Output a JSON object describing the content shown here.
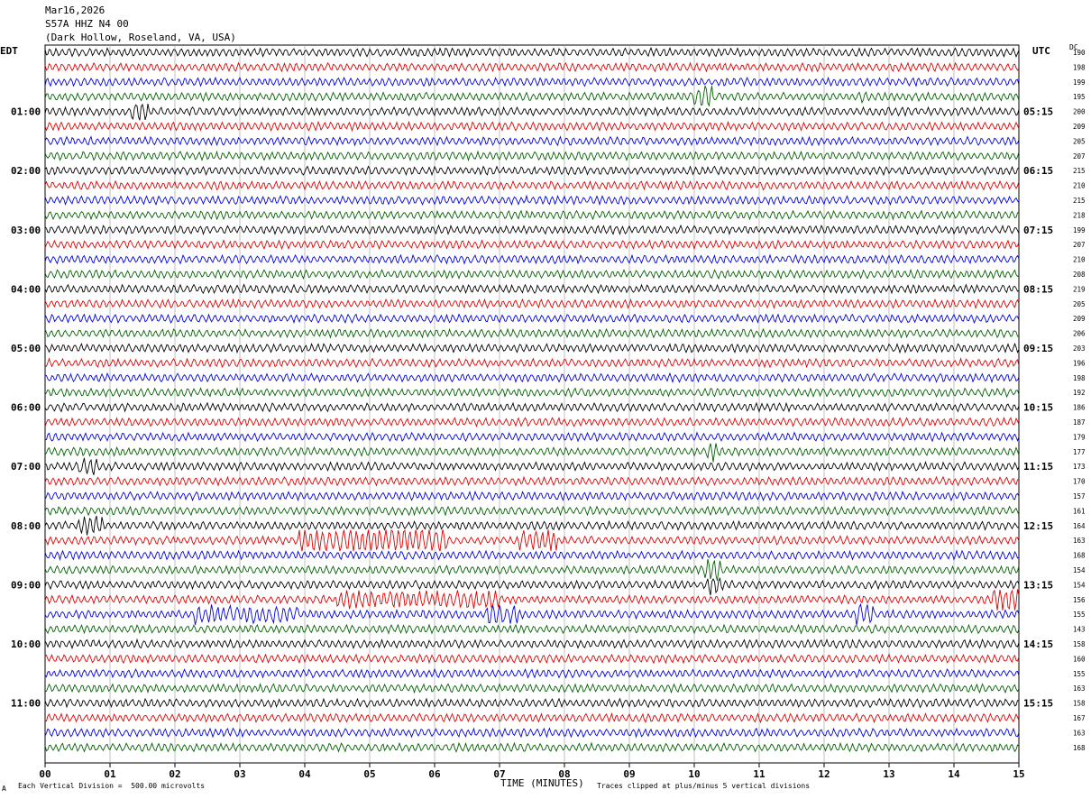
{
  "header": {
    "date": "Mar16,2026",
    "station": "S57A HHZ N4 00",
    "location": "(Dark Hollow, Roseland, VA, USA)"
  },
  "left_axis_title": "EDT",
  "right_axis_title": "UTC",
  "dc_title": "DC",
  "footer": {
    "left": "Each Vertical Division =  500.00 microvolts",
    "center": "TIME (MINUTES)",
    "right": "Traces clipped at plus/minus 5 vertical divisions",
    "corner": "A"
  },
  "colors": {
    "black": "#000000",
    "red": "#e00000",
    "blue": "#0000e0",
    "green": "#006000",
    "grid": "#999999"
  },
  "chart_data": {
    "type": "line",
    "title": "Mar16,2026 S57A HHZ N4 00 (Dark Hollow, Roseland, VA, USA)",
    "xlabel": "TIME (MINUTES)",
    "xlim": [
      0,
      15
    ],
    "x_ticks": [
      "00",
      "01",
      "02",
      "03",
      "04",
      "05",
      "06",
      "07",
      "08",
      "09",
      "10",
      "11",
      "12",
      "13",
      "14",
      "15"
    ],
    "trace_minutes": 15,
    "trace_count": 48,
    "trace_color_cycle": [
      "black",
      "red",
      "blue",
      "green"
    ],
    "edt_labels": [
      {
        "trace": 4,
        "text": "01:00"
      },
      {
        "trace": 8,
        "text": "02:00"
      },
      {
        "trace": 12,
        "text": "03:00"
      },
      {
        "trace": 16,
        "text": "04:00"
      },
      {
        "trace": 20,
        "text": "05:00"
      },
      {
        "trace": 24,
        "text": "06:00"
      },
      {
        "trace": 28,
        "text": "07:00"
      },
      {
        "trace": 32,
        "text": "08:00"
      },
      {
        "trace": 36,
        "text": "09:00"
      },
      {
        "trace": 40,
        "text": "10:00"
      },
      {
        "trace": 44,
        "text": "11:00"
      }
    ],
    "utc_labels": [
      {
        "trace": 4,
        "text": "05:15"
      },
      {
        "trace": 8,
        "text": "06:15"
      },
      {
        "trace": 12,
        "text": "07:15"
      },
      {
        "trace": 16,
        "text": "08:15"
      },
      {
        "trace": 20,
        "text": "09:15"
      },
      {
        "trace": 24,
        "text": "10:15"
      },
      {
        "trace": 28,
        "text": "11:15"
      },
      {
        "trace": 32,
        "text": "12:15"
      },
      {
        "trace": 36,
        "text": "13:15"
      },
      {
        "trace": 40,
        "text": "14:15"
      },
      {
        "trace": 44,
        "text": "15:15"
      }
    ],
    "dc_offsets": [
      "190",
      "198",
      "199",
      "195",
      "200",
      "209",
      "205",
      "207",
      "215",
      "210",
      "215",
      "218",
      "199",
      "207",
      "210",
      "208",
      "219",
      "205",
      "209",
      "206",
      "203",
      "196",
      "198",
      "192",
      "186",
      "187",
      "179",
      "177",
      "173",
      "170",
      "157",
      "161",
      "164",
      "163",
      "168",
      "154",
      "154",
      "156",
      "155",
      "143",
      "158",
      "160",
      "155",
      "163",
      "158",
      "167",
      "163",
      "168"
    ],
    "events": [
      {
        "trace": 3,
        "start_min": 10.0,
        "end_min": 10.3,
        "amp": 2.2
      },
      {
        "trace": 3,
        "start_min": 12.55,
        "end_min": 12.65,
        "amp": 1.4
      },
      {
        "trace": 4,
        "start_min": 1.3,
        "end_min": 1.6,
        "amp": 1.6
      },
      {
        "trace": 27,
        "start_min": 10.2,
        "end_min": 10.35,
        "amp": 1.8
      },
      {
        "trace": 28,
        "start_min": 0.5,
        "end_min": 0.8,
        "amp": 1.4
      },
      {
        "trace": 32,
        "start_min": 0.5,
        "end_min": 0.9,
        "amp": 1.5
      },
      {
        "trace": 33,
        "start_min": 3.9,
        "end_min": 6.2,
        "amp": 2.4
      },
      {
        "trace": 33,
        "start_min": 7.3,
        "end_min": 7.9,
        "amp": 1.8
      },
      {
        "trace": 35,
        "start_min": 10.15,
        "end_min": 10.4,
        "amp": 2.2
      },
      {
        "trace": 36,
        "start_min": 10.2,
        "end_min": 10.45,
        "amp": 1.8
      },
      {
        "trace": 37,
        "start_min": 14.6,
        "end_min": 15.0,
        "amp": 2.0
      },
      {
        "trace": 37,
        "start_min": 4.5,
        "end_min": 7.0,
        "amp": 1.2
      },
      {
        "trace": 38,
        "start_min": 2.3,
        "end_min": 3.9,
        "amp": 1.3
      },
      {
        "trace": 38,
        "start_min": 6.8,
        "end_min": 7.3,
        "amp": 2.0
      },
      {
        "trace": 38,
        "start_min": 12.5,
        "end_min": 12.75,
        "amp": 2.2
      }
    ]
  }
}
